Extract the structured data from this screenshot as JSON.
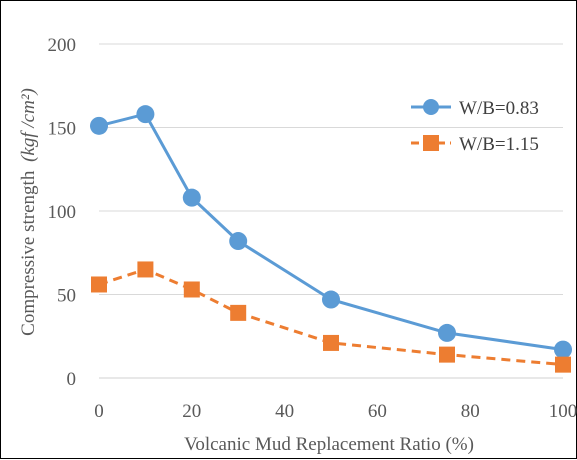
{
  "chart_data": {
    "type": "line",
    "title": "",
    "xlabel": "Volcanic Mud Replacement Ratio (%)",
    "ylabel_prefix": "Compressive  strength",
    "ylabel_unit": "(kgf /cm²)",
    "xlim": [
      0,
      100
    ],
    "ylim": [
      0,
      200
    ],
    "xticks": [
      0,
      20,
      40,
      60,
      80,
      100
    ],
    "yticks": [
      0,
      50,
      100,
      150,
      200
    ],
    "grid": "horizontal",
    "legend_position": "right",
    "series": [
      {
        "name": "W/B=0.83",
        "color": "#5b9bd5",
        "line_style": "solid",
        "marker": "circle",
        "x": [
          0,
          10,
          20,
          30,
          50,
          75,
          100
        ],
        "y": [
          151,
          158,
          108,
          82,
          47,
          27,
          17
        ]
      },
      {
        "name": "W/B=1.15",
        "color": "#ed7d31",
        "line_style": "dashed",
        "marker": "square",
        "x": [
          0,
          10,
          20,
          30,
          50,
          75,
          100
        ],
        "y": [
          56,
          65,
          53,
          39,
          21,
          14,
          8
        ]
      }
    ]
  }
}
